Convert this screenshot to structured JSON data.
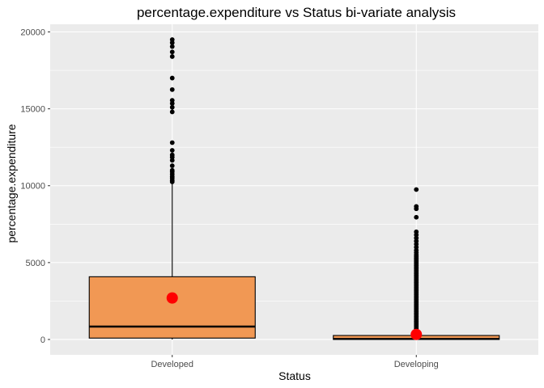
{
  "chart_data": {
    "type": "box",
    "title": "percentage.expenditure vs Status bi-variate analysis",
    "xlabel": "Status",
    "ylabel": "percentage.expenditure",
    "ylim": [
      -1000,
      20500
    ],
    "yticks": [
      0,
      5000,
      10000,
      15000,
      20000
    ],
    "grid": true,
    "categories": [
      "Developed",
      "Developing"
    ],
    "colors": {
      "box_fill": "#f19854",
      "mean_point": "#ff0000",
      "outlier": "#000000",
      "panel_bg": "#ebebeb",
      "grid": "#ffffff"
    },
    "boxes": [
      {
        "name": "Developed",
        "min": 0,
        "q1": 90,
        "median": 840,
        "q3": 4080,
        "max": 10200,
        "mean": 2700,
        "outliers": [
          10250,
          10350,
          10500,
          10600,
          10750,
          10900,
          11000,
          11300,
          11650,
          11850,
          12000,
          12300,
          12800,
          14800,
          15100,
          15350,
          15550,
          16250,
          17000,
          18400,
          18700,
          19050,
          19300,
          19500
        ]
      },
      {
        "name": "Developing",
        "min": 0,
        "q1": 5,
        "median": 35,
        "q3": 260,
        "max": 640,
        "mean": 330,
        "outliers": [
          700,
          800,
          900,
          1000,
          1100,
          1200,
          1300,
          1400,
          1500,
          1600,
          1700,
          1800,
          1900,
          2000,
          2100,
          2200,
          2300,
          2400,
          2500,
          2600,
          2700,
          2800,
          2900,
          3000,
          3100,
          3200,
          3300,
          3400,
          3500,
          3600,
          3700,
          3800,
          3900,
          4000,
          4100,
          4200,
          4300,
          4400,
          4500,
          4600,
          4700,
          4800,
          4900,
          5000,
          5100,
          5200,
          5300,
          5400,
          5500,
          5650,
          5800,
          6000,
          6200,
          6400,
          6600,
          6800,
          7000,
          7950,
          8500,
          8650,
          9750
        ]
      }
    ]
  }
}
